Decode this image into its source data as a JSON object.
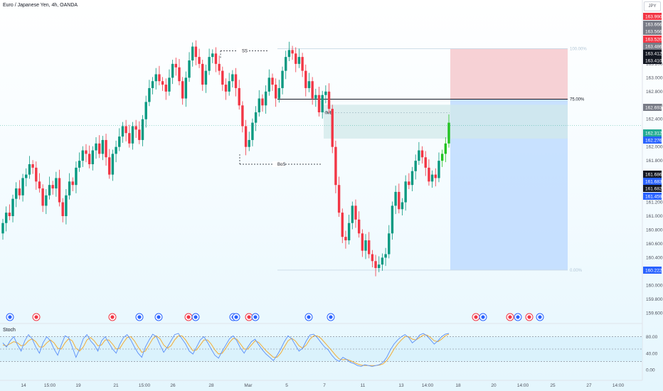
{
  "header": {
    "title": "Euro / Japanese Yen, 4h, OANDA",
    "currency": "JPY"
  },
  "colors": {
    "up": "#089981",
    "upBright": "#22c322",
    "down": "#f23645",
    "stopZone": "#f5c6cb",
    "targetZone": "#bcd9ff",
    "imbZone": "#d2e8ea",
    "stoch_k": "#5b8ff9",
    "stoch_d": "#f5a623"
  },
  "price_axis": {
    "ticks": [
      "163.200",
      "163.000",
      "162.800",
      "162.600",
      "162.400",
      "162.000",
      "161.800",
      "161.200",
      "161.000",
      "160.800",
      "160.600",
      "160.400",
      "160.000",
      "159.800",
      "159.600"
    ]
  },
  "price_tags": [
    {
      "text": "163.990",
      "color": "#f23645"
    },
    {
      "text": "163.666",
      "color": "#787b86"
    },
    {
      "text": "163.566",
      "color": "#787b86"
    },
    {
      "text": "163.520",
      "color": "#f23645"
    },
    {
      "text": "163.486",
      "color": "#787b86"
    },
    {
      "text": "163.412",
      "color": "#131722"
    },
    {
      "text": "163.410",
      "color": "#131722"
    },
    {
      "text": "162.693",
      "color": "#787b86"
    },
    {
      "text": "162.312",
      "color": "#22ab94"
    },
    {
      "text": "162.276",
      "color": "#2962ff"
    },
    {
      "text": "161.686",
      "color": "#131722"
    },
    {
      "text": "161.683",
      "color": "#2962ff"
    },
    {
      "text": "161.682",
      "color": "#131722"
    },
    {
      "text": "161.459",
      "color": "#2962ff"
    },
    {
      "text": "160.222",
      "color": "#2962ff"
    }
  ],
  "annotations": {
    "ss": "SS",
    "bos": "BoS",
    "imb": "IMB",
    "fib_top": "100.00%",
    "fib_mid": "75.00%",
    "fib_bottom": "0.00%"
  },
  "stoch": {
    "label": "Stoch",
    "ticks": [
      "80.00",
      "40.00",
      "0.00"
    ]
  },
  "time_axis": {
    "labels": [
      "14",
      "15:00",
      "19",
      "21",
      "15:00",
      "26",
      "28",
      "Mar",
      "5",
      "7",
      "11",
      "13",
      "14:00",
      "18",
      "20",
      "14:00",
      "25",
      "27",
      "14:00"
    ]
  },
  "chart_data": {
    "type": "candlestick",
    "title": "Euro / Japanese Yen, 4h, OANDA",
    "y_unit": "JPY",
    "ylim": [
      159.5,
      164.0
    ],
    "levels": {
      "ss": 163.39,
      "bos": 161.75,
      "fib_100": 163.42,
      "fib_75": 162.69,
      "fib_0": 160.22,
      "stop_top": 163.42,
      "entry": 162.69,
      "target": 160.22,
      "imb_top": 162.61,
      "imb_bottom": 162.12,
      "last_price": 162.312
    },
    "closes": [
      160.9,
      161.05,
      161.0,
      161.25,
      161.4,
      161.3,
      161.55,
      161.6,
      161.75,
      161.7,
      161.5,
      161.4,
      161.15,
      161.3,
      161.45,
      161.4,
      161.55,
      161.2,
      161.0,
      161.3,
      161.5,
      161.45,
      161.7,
      161.8,
      161.95,
      161.9,
      161.75,
      161.95,
      162.05,
      161.9,
      162.1,
      161.85,
      161.6,
      161.9,
      162.0,
      162.15,
      162.3,
      162.2,
      162.05,
      162.3,
      162.25,
      162.1,
      162.4,
      162.65,
      162.85,
      162.95,
      163.05,
      162.95,
      162.9,
      162.8,
      163.0,
      163.2,
      163.15,
      162.95,
      162.7,
      163.0,
      163.25,
      163.45,
      163.3,
      163.2,
      162.9,
      163.1,
      163.3,
      163.35,
      163.2,
      163.1,
      162.9,
      162.8,
      162.95,
      163.05,
      162.85,
      162.6,
      162.3,
      162.0,
      162.1,
      162.35,
      162.5,
      162.7,
      162.6,
      162.8,
      163.0,
      162.9,
      162.7,
      162.85,
      163.1,
      163.3,
      163.4,
      163.35,
      163.2,
      163.3,
      163.1,
      162.85,
      162.95,
      162.7,
      162.75,
      162.5,
      162.75,
      162.8,
      162.55,
      162.0,
      161.45,
      161.05,
      160.7,
      160.65,
      160.9,
      161.15,
      160.95,
      160.75,
      160.5,
      160.65,
      160.45,
      160.35,
      160.25,
      160.3,
      160.4,
      160.45,
      160.75,
      161.15,
      161.35,
      161.1,
      161.2,
      161.5,
      161.45,
      161.65,
      161.8,
      161.95,
      161.85,
      161.7,
      161.5,
      161.6,
      161.55,
      161.8,
      161.9,
      162.05,
      162.35
    ],
    "stoch_k": [
      65,
      55,
      70,
      80,
      60,
      45,
      70,
      85,
      75,
      55,
      40,
      65,
      80,
      70,
      50,
      35,
      60,
      82,
      78,
      55,
      30,
      50,
      75,
      85,
      70,
      60,
      45,
      70,
      80,
      65,
      50,
      40,
      62,
      78,
      85,
      72,
      55,
      40,
      30,
      55,
      72,
      86,
      80,
      60,
      42,
      55,
      70,
      85,
      88,
      75,
      62,
      45,
      38,
      55,
      72,
      80,
      66,
      50,
      35,
      28,
      45,
      60,
      75,
      82,
      70,
      52,
      40,
      55,
      68,
      74,
      60,
      48,
      38,
      30,
      22,
      35,
      50,
      68,
      82,
      75,
      60,
      45,
      52,
      70,
      84,
      86,
      78,
      66,
      55,
      48,
      35,
      25,
      20,
      30,
      25,
      18,
      15,
      10,
      8,
      12,
      10,
      8,
      10,
      12,
      18,
      30,
      48,
      62,
      72,
      80,
      85,
      78,
      65,
      72,
      84,
      88,
      82,
      72,
      62,
      70,
      80,
      86,
      88
    ],
    "stoch_d": [
      60,
      58,
      63,
      68,
      65,
      58,
      60,
      70,
      75,
      68,
      55,
      55,
      65,
      72,
      65,
      52,
      50,
      65,
      75,
      70,
      52,
      45,
      55,
      72,
      78,
      70,
      58,
      60,
      72,
      72,
      62,
      50,
      52,
      66,
      78,
      80,
      70,
      55,
      42,
      45,
      60,
      75,
      82,
      75,
      60,
      52,
      58,
      72,
      82,
      82,
      72,
      58,
      46,
      48,
      60,
      72,
      72,
      62,
      48,
      38,
      40,
      52,
      66,
      76,
      74,
      62,
      50,
      50,
      60,
      70,
      66,
      56,
      46,
      38,
      30,
      30,
      40,
      55,
      70,
      76,
      70,
      58,
      52,
      60,
      74,
      82,
      82,
      76,
      66,
      56,
      46,
      35,
      26,
      24,
      25,
      22,
      18,
      14,
      11,
      10,
      10,
      10,
      10,
      11,
      14,
      22,
      35,
      50,
      62,
      72,
      80,
      80,
      74,
      72,
      78,
      84,
      84,
      78,
      70,
      68,
      74,
      82,
      86
    ]
  }
}
